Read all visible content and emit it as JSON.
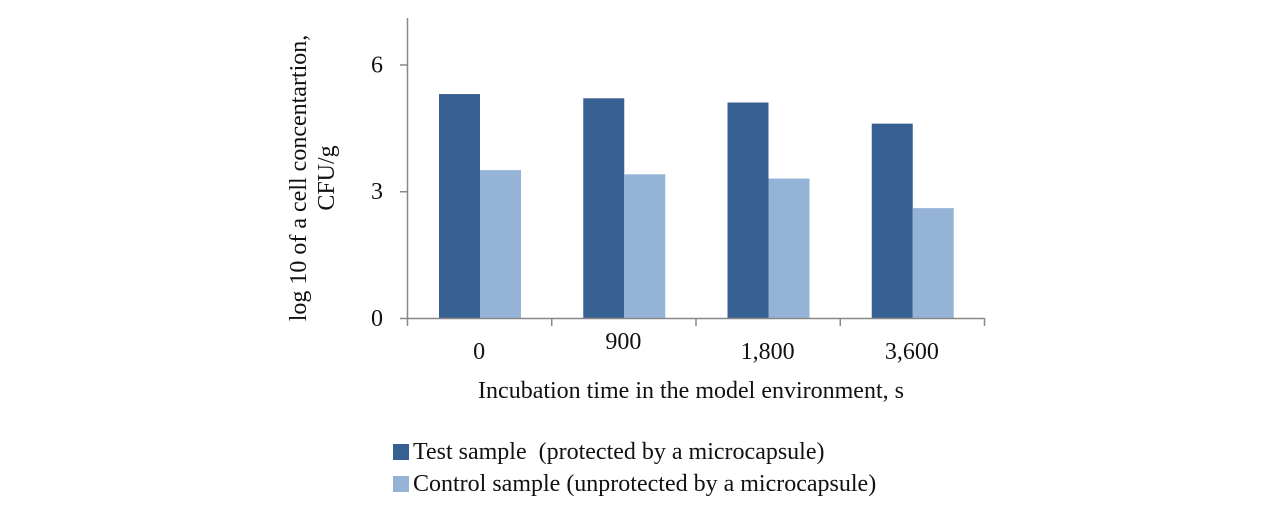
{
  "chart_data": {
    "type": "bar",
    "title": "",
    "xlabel": "Incubation time in the model environment, s",
    "ylabel_lines": [
      "log 10 of a cell concentartion,",
      "CFU/g"
    ],
    "ylabel": "log 10 of a cell concentartion, CFU/g",
    "categories": [
      "0",
      "900",
      "1,800",
      "3,600"
    ],
    "series": [
      {
        "name": "Test sample  (protected by a microcapsule)",
        "color": "#376092",
        "values": [
          5.3,
          5.2,
          5.1,
          4.6
        ]
      },
      {
        "name": "Control sample (unprotected by a microcapsule)",
        "color": "#95B3D7",
        "values": [
          3.5,
          3.4,
          3.3,
          2.6
        ]
      }
    ],
    "yticks": [
      0,
      3,
      6
    ],
    "ylim": [
      0,
      7.1
    ],
    "grid": false,
    "legend_position": "bottom"
  }
}
